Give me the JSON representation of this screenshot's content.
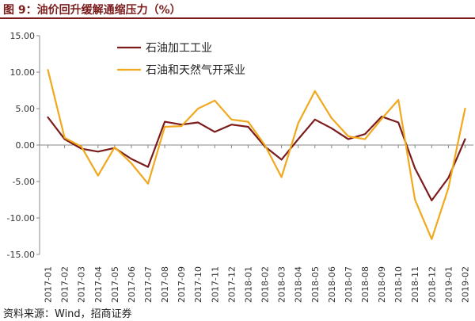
{
  "title": "图 9：油价回升缓解通缩压力（%）",
  "source": "资料来源：Wind，招商证券",
  "chart_data": {
    "type": "line",
    "title": "图 9：油价回升缓解通缩压力（%）",
    "xlabel": "",
    "ylabel": "",
    "ylim": [
      -15,
      15
    ],
    "yticks": [
      "15.00",
      "10.00",
      "5.00",
      "0.00",
      "-5.00",
      "-10.00",
      "-15.00"
    ],
    "grid": false,
    "legend_position": "top-center",
    "x": [
      "2017-01",
      "2017-02",
      "2017-03",
      "2017-04",
      "2017-05",
      "2017-06",
      "2017-07",
      "2017-08",
      "2017-09",
      "2017-10",
      "2017-11",
      "2017-12",
      "2018-01",
      "2018-02",
      "2018-03",
      "2018-04",
      "2018-05",
      "2018-06",
      "2018-07",
      "2018-08",
      "2018-09",
      "2018-10",
      "2018-11",
      "2018-12",
      "2019-01",
      "2019-02"
    ],
    "series": [
      {
        "name": "石油加工工业",
        "color": "#7b1b1b",
        "values": [
          3.8,
          0.8,
          -0.5,
          -0.9,
          -0.4,
          -1.9,
          -3.0,
          3.2,
          2.8,
          3.1,
          1.8,
          2.8,
          2.5,
          -0.2,
          -2.0,
          0.8,
          3.5,
          2.3,
          0.8,
          1.5,
          3.9,
          3.1,
          -3.2,
          -7.6,
          -4.5,
          0.8
        ]
      },
      {
        "name": "石油和天然气开采业",
        "color": "#f0a81c",
        "values": [
          10.3,
          1.0,
          -0.2,
          -4.2,
          -0.3,
          -2.5,
          -5.3,
          2.5,
          2.6,
          5.0,
          6.1,
          3.5,
          3.2,
          0.0,
          -4.4,
          3.0,
          7.4,
          3.7,
          1.2,
          0.8,
          3.6,
          6.2,
          -7.5,
          -12.9,
          -5.9,
          5.0
        ]
      }
    ]
  }
}
